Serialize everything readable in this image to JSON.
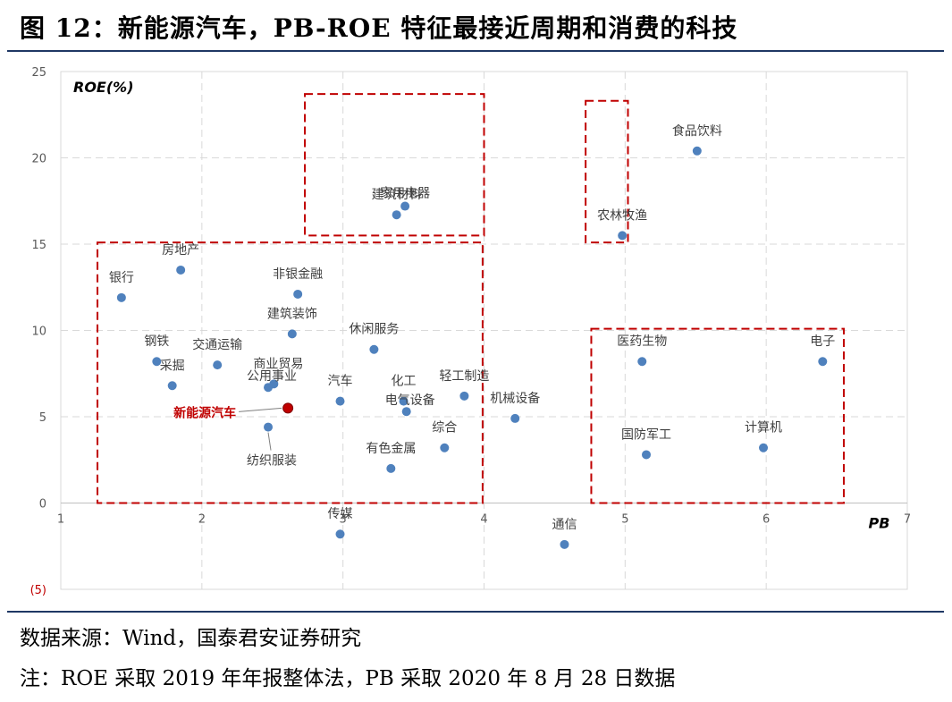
{
  "title": "图 12：新能源汽车，PB-ROE 特征最接近周期和消费的科技",
  "source": "数据来源：Wind，国泰君安证券研究",
  "note": "注：ROE 采取 2019 年年报整体法，PB 采取 2020 年 8 月 28 日数据",
  "colors": {
    "point": "#4f81bd",
    "highlight": "#c00000",
    "box": "#c00000",
    "grid": "#d9d9d9",
    "negative_tick": "#c00000",
    "rule": "#1f3864"
  },
  "chart_data": {
    "type": "scatter",
    "xlabel": "PB",
    "ylabel": "ROE(%)",
    "xlim": [
      1,
      7
    ],
    "ylim": [
      -5,
      25
    ],
    "xticks": [
      "1",
      "2",
      "3",
      "4",
      "5",
      "6",
      "7"
    ],
    "yticks": [
      {
        "value": 25,
        "label": "25"
      },
      {
        "value": 20,
        "label": "20"
      },
      {
        "value": 15,
        "label": "15"
      },
      {
        "value": 10,
        "label": "10"
      },
      {
        "value": 5,
        "label": "5"
      },
      {
        "value": 0,
        "label": "0"
      },
      {
        "value": -5,
        "label": "(5)"
      }
    ],
    "grid": true,
    "points": [
      {
        "label": "银行",
        "x": 1.43,
        "y": 11.9
      },
      {
        "label": "房地产",
        "x": 1.85,
        "y": 13.5
      },
      {
        "label": "钢铁",
        "x": 1.68,
        "y": 8.2
      },
      {
        "label": "采掘",
        "x": 1.79,
        "y": 6.8
      },
      {
        "label": "交通运输",
        "x": 2.11,
        "y": 8.0
      },
      {
        "label": "商业贸易",
        "x": 2.51,
        "y": 6.9
      },
      {
        "label": "公用事业",
        "x": 2.47,
        "y": 6.7
      },
      {
        "label": "非银金融",
        "x": 2.68,
        "y": 12.1
      },
      {
        "label": "建筑装饰",
        "x": 2.64,
        "y": 9.8
      },
      {
        "label": "纺织服装",
        "x": 2.47,
        "y": 4.4
      },
      {
        "label": "新能源汽车",
        "x": 2.61,
        "y": 5.5,
        "highlight": true
      },
      {
        "label": "休闲服务",
        "x": 3.22,
        "y": 8.9
      },
      {
        "label": "汽车",
        "x": 2.98,
        "y": 5.9
      },
      {
        "label": "化工",
        "x": 3.43,
        "y": 5.9
      },
      {
        "label": "电气设备",
        "x": 3.45,
        "y": 5.3
      },
      {
        "label": "有色金属",
        "x": 3.34,
        "y": 2.0
      },
      {
        "label": "综合",
        "x": 3.72,
        "y": 3.2
      },
      {
        "label": "轻工制造",
        "x": 3.86,
        "y": 6.2
      },
      {
        "label": "机械设备",
        "x": 4.22,
        "y": 4.9
      },
      {
        "label": "传媒",
        "x": 2.98,
        "y": -1.8
      },
      {
        "label": "通信",
        "x": 4.57,
        "y": -2.4
      },
      {
        "label": "家用电器",
        "x": 3.44,
        "y": 17.2
      },
      {
        "label": "建筑材料",
        "x": 3.38,
        "y": 16.7
      },
      {
        "label": "农林牧渔",
        "x": 4.98,
        "y": 15.5
      },
      {
        "label": "食品饮料",
        "x": 5.51,
        "y": 20.4
      },
      {
        "label": "医药生物",
        "x": 5.12,
        "y": 8.2
      },
      {
        "label": "电子",
        "x": 6.4,
        "y": 8.2
      },
      {
        "label": "国防军工",
        "x": 5.15,
        "y": 2.8
      },
      {
        "label": "计算机",
        "x": 5.98,
        "y": 3.2
      }
    ],
    "boxes": [
      {
        "x0": 1.26,
        "x1": 3.99,
        "y0": 0.0,
        "y1": 15.1
      },
      {
        "x0": 2.73,
        "x1": 4.0,
        "y0": 15.5,
        "y1": 23.7
      },
      {
        "x0": 4.72,
        "x1": 5.02,
        "y0": 15.1,
        "y1": 23.3
      },
      {
        "x0": 4.76,
        "x1": 6.55,
        "y0": 0.0,
        "y1": 10.1
      }
    ]
  }
}
